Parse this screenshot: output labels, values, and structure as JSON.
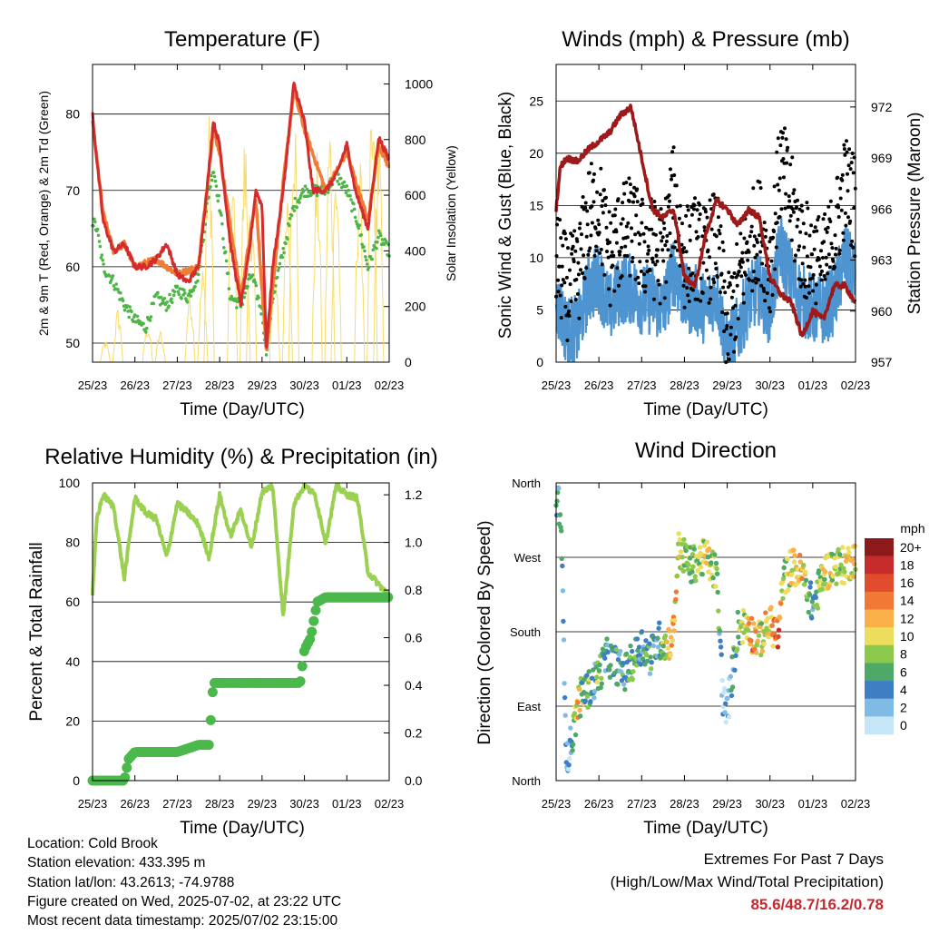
{
  "footer": {
    "location": "Location: Cold Brook",
    "elevation": "Station elevation: 433.395 m",
    "latlon": "Station lat/lon: 43.2613; -74.9788",
    "created": "Figure created on Wed, 2025-07-02, at 23:22 UTC",
    "timestamp": "Most recent data timestamp: 2025/07/02 23:15:00",
    "extremes_title": "Extremes For Past 7 Days",
    "extremes_subtitle": "(High/Low/Max Wind/Total Precipitation)",
    "extremes_value": "85.6/48.7/16.2/0.78"
  },
  "x_ticks": [
    "25/23",
    "26/23",
    "27/23",
    "28/23",
    "29/23",
    "30/23",
    "01/23",
    "02/23"
  ],
  "colors": {
    "temp_2m": "#d42c2c",
    "temp_9m": "#f07d35",
    "dewpoint": "#4eb548",
    "solar": "#f7dc6b",
    "wind": "#4d94d1",
    "gust": "#000000",
    "pressure": "#9e1a1a",
    "humidity": "#9bd052",
    "precip": "#4ab84a"
  },
  "chart_data": [
    {
      "type": "line",
      "title": "Temperature (F)",
      "xlabel": "Time (Day/UTC)",
      "ylabel_left": "2m & 9m T (Red, Orange) & 2m Td (Green)",
      "ylabel_right": "Solar Insolation (Yellow)",
      "ylim_left": [
        47.5,
        86.5
      ],
      "ylim_right": [
        0,
        1070
      ],
      "yticks_left": [
        50,
        60,
        70,
        80
      ],
      "yticks_right": [
        0,
        200,
        400,
        600,
        800,
        1000
      ],
      "series": [
        {
          "key": "temp_2m",
          "axis": "left",
          "x": [
            0,
            0.1,
            0.25,
            0.5,
            0.75,
            1,
            1.25,
            1.5,
            1.75,
            2,
            2.25,
            2.5,
            2.7,
            2.85,
            3,
            3.25,
            3.5,
            3.7,
            3.85,
            4,
            4.1,
            4.25,
            4.5,
            4.75,
            5,
            5.2,
            5.5,
            5.75,
            6,
            6.2,
            6.5,
            6.75,
            7
          ],
          "values": [
            80,
            74,
            66,
            62,
            63,
            60,
            60,
            61,
            63,
            59,
            58,
            60,
            70,
            79,
            76,
            63,
            55,
            62,
            70,
            68,
            49,
            60,
            70,
            84,
            79,
            70,
            70,
            72,
            76,
            70,
            65,
            77,
            74
          ]
        },
        {
          "key": "temp_9m",
          "axis": "left",
          "x": [
            0,
            0.25,
            0.5,
            0.75,
            1,
            1.5,
            2,
            2.5,
            2.85,
            3,
            3.5,
            3.85,
            4.1,
            4.5,
            4.75,
            5,
            5.5,
            6,
            6.5,
            6.75,
            7
          ],
          "values": [
            79,
            67,
            62,
            63,
            60,
            61,
            59,
            60,
            78,
            75,
            56,
            69,
            49,
            71,
            83,
            78,
            70,
            75,
            66,
            76,
            73
          ]
        },
        {
          "key": "dewpoint",
          "axis": "left",
          "x": [
            0,
            0.1,
            0.25,
            0.5,
            0.75,
            1,
            1.25,
            1.5,
            1.75,
            2,
            2.25,
            2.5,
            2.75,
            2.85,
            3,
            3.25,
            3.5,
            3.75,
            4,
            4.1,
            4.25,
            4.5,
            4.75,
            5,
            5.25,
            5.5,
            5.75,
            6,
            6.25,
            6.5,
            6.75,
            7
          ],
          "values": [
            66,
            65,
            60,
            58,
            55,
            53,
            52,
            56,
            55,
            57,
            56,
            59,
            70,
            73,
            68,
            56,
            55,
            59,
            54,
            49,
            56,
            62,
            68,
            70,
            70,
            70,
            72,
            70,
            66,
            60,
            64,
            62
          ]
        },
        {
          "key": "solar",
          "axis": "right",
          "note": "daily insolation peaks",
          "x": [
            0.3,
            0.6,
            1.3,
            1.6,
            2.3,
            2.6,
            2.75,
            3.3,
            3.6,
            3.75,
            4.3,
            4.6,
            4.75,
            5.3,
            5.6,
            5.75,
            6.3,
            6.6,
            6.75
          ],
          "values": [
            80,
            200,
            150,
            120,
            280,
            350,
            920,
            720,
            850,
            650,
            400,
            620,
            1060,
            760,
            920,
            780,
            760,
            960,
            880
          ]
        }
      ]
    },
    {
      "type": "line",
      "title": "Winds (mph) & Pressure (mb)",
      "xlabel": "Time (Day/UTC)",
      "ylabel_left": "Sonic Wind & Gust (Blue, Black)",
      "ylabel_right": "Station Pressure (Maroon)",
      "ylim_left": [
        0,
        28.5
      ],
      "ylim_right": [
        957,
        974.5
      ],
      "yticks_left": [
        0,
        5,
        10,
        15,
        20,
        25
      ],
      "yticks_right": [
        957,
        960,
        963,
        966,
        969,
        972
      ],
      "series": [
        {
          "key": "wind",
          "axis": "left",
          "x": [
            0,
            0.25,
            0.5,
            0.75,
            1,
            1.25,
            1.5,
            1.75,
            2,
            2.25,
            2.5,
            2.75,
            3,
            3.25,
            3.5,
            3.75,
            4,
            4.25,
            4.5,
            4.75,
            5,
            5.25,
            5.5,
            5.75,
            6,
            6.25,
            6.5,
            6.75,
            7
          ],
          "values": [
            6,
            3,
            3,
            7,
            8,
            5,
            7,
            7,
            6,
            6,
            5,
            9,
            6,
            6,
            5,
            7,
            1,
            3,
            6,
            7,
            5,
            11,
            8,
            6,
            5,
            5,
            6,
            10,
            8
          ]
        },
        {
          "key": "gust",
          "axis": "left",
          "x": [
            0,
            0.25,
            0.5,
            0.75,
            1,
            1.25,
            1.5,
            1.75,
            2,
            2.25,
            2.5,
            2.75,
            3,
            3.25,
            3.5,
            3.75,
            4,
            4.25,
            4.5,
            4.75,
            5,
            5.25,
            5.5,
            5.75,
            6,
            6.25,
            6.5,
            6.75,
            7
          ],
          "values": [
            10,
            7,
            8,
            14,
            15,
            10,
            12,
            13,
            11,
            11,
            10,
            16,
            10,
            11,
            10,
            12,
            3,
            7,
            11,
            13,
            9,
            19,
            15,
            11,
            10,
            9,
            12,
            17,
            15
          ]
        },
        {
          "key": "pressure",
          "axis": "right",
          "x": [
            0,
            0.1,
            0.25,
            0.5,
            0.75,
            1,
            1.25,
            1.5,
            1.75,
            2,
            2.25,
            2.5,
            2.75,
            3,
            3.25,
            3.5,
            3.75,
            4,
            4.25,
            4.5,
            4.75,
            5,
            5.25,
            5.5,
            5.75,
            6,
            6.25,
            6.5,
            6.75,
            7
          ],
          "values": [
            966,
            968.5,
            969,
            968.8,
            969.5,
            970,
            970.5,
            971.5,
            972,
            969,
            966,
            965.5,
            966,
            962,
            961.5,
            964.5,
            966.5,
            966,
            965,
            966,
            965.5,
            962,
            961,
            960.5,
            958.5,
            960,
            959.5,
            961.5,
            961.5,
            960.5
          ]
        }
      ]
    },
    {
      "type": "line",
      "title": "Relative Humidity (%) & Precipitation (in)",
      "xlabel": "Time (Day/UTC)",
      "ylabel_left": "Percent & Total Rainfall",
      "ylim_left": [
        0,
        100
      ],
      "ylim_right": [
        0,
        1.25
      ],
      "yticks_left": [
        0,
        20,
        40,
        60,
        80,
        100
      ],
      "yticks_right": [
        0.0,
        0.2,
        0.4,
        0.6,
        0.8,
        1.0,
        1.2
      ],
      "series": [
        {
          "key": "humidity",
          "axis": "left",
          "x": [
            0,
            0.1,
            0.25,
            0.5,
            0.75,
            1,
            1.25,
            1.5,
            1.75,
            2,
            2.25,
            2.5,
            2.75,
            3,
            3.25,
            3.5,
            3.75,
            4,
            4.25,
            4.5,
            4.75,
            5,
            5.25,
            5.5,
            5.75,
            6,
            6.25,
            6.5,
            6.75,
            7
          ],
          "values": [
            62,
            88,
            96,
            92,
            68,
            95,
            90,
            88,
            75,
            93,
            90,
            86,
            75,
            96,
            82,
            91,
            78,
            97,
            99,
            55,
            93,
            99,
            96,
            80,
            99,
            96,
            95,
            70,
            66,
            62
          ]
        },
        {
          "key": "precip",
          "axis": "right",
          "x": [
            0,
            0.75,
            0.85,
            1,
            1.5,
            2,
            2.5,
            2.75,
            2.85,
            3,
            3.5,
            4,
            4.5,
            4.9,
            5,
            5.15,
            5.3,
            5.5,
            6,
            6.5,
            7
          ],
          "values": [
            0,
            0,
            0.09,
            0.12,
            0.12,
            0.12,
            0.15,
            0.15,
            0.41,
            0.41,
            0.41,
            0.41,
            0.41,
            0.41,
            0.55,
            0.6,
            0.75,
            0.77,
            0.77,
            0.77,
            0.77
          ]
        }
      ]
    },
    {
      "type": "scatter",
      "title": "Wind Direction",
      "xlabel": "Time (Day/UTC)",
      "ylabel": "Direction (Colored By Speed)",
      "yticks": [
        "North",
        "East",
        "South",
        "West",
        "North"
      ],
      "ylim": [
        0,
        360
      ],
      "legend": {
        "title": "mph",
        "placement": "right",
        "labels": [
          "20+",
          "18",
          "16",
          "14",
          "12",
          "10",
          "8",
          "6",
          "4",
          "2",
          "0"
        ],
        "colors": [
          "#8c1a1a",
          "#c72c2c",
          "#e14c2c",
          "#f07a35",
          "#f9b048",
          "#ecdd5c",
          "#8cc84b",
          "#4ea867",
          "#3d7fc2",
          "#7fbbe5",
          "#c6e6f8"
        ]
      },
      "x": [
        0,
        0.1,
        0.25,
        0.4,
        0.5,
        0.6,
        0.75,
        0.9,
        1,
        1.2,
        1.4,
        1.6,
        1.8,
        2,
        2.2,
        2.4,
        2.6,
        2.75,
        2.85,
        3,
        3.15,
        3.3,
        3.5,
        3.75,
        3.9,
        4,
        4.25,
        4.5,
        4.6,
        4.75,
        5,
        5.2,
        5.3,
        5.5,
        5.75,
        6,
        6.25,
        6.5,
        6.75,
        7
      ],
      "values": [
        340,
        330,
        20,
        60,
        90,
        105,
        110,
        120,
        130,
        150,
        140,
        130,
        145,
        165,
        150,
        170,
        165,
        180,
        280,
        270,
        260,
        265,
        270,
        250,
        100,
        80,
        185,
        190,
        175,
        170,
        190,
        175,
        240,
        260,
        250,
        210,
        250,
        260,
        260,
        270
      ],
      "speeds": [
        6,
        4,
        2,
        4,
        12,
        6,
        8,
        4,
        8,
        4,
        6,
        4,
        8,
        4,
        6,
        4,
        10,
        12,
        10,
        8,
        6,
        8,
        10,
        8,
        2,
        2,
        6,
        10,
        14,
        8,
        12,
        16,
        6,
        10,
        12,
        4,
        10,
        8,
        10,
        10
      ]
    }
  ]
}
